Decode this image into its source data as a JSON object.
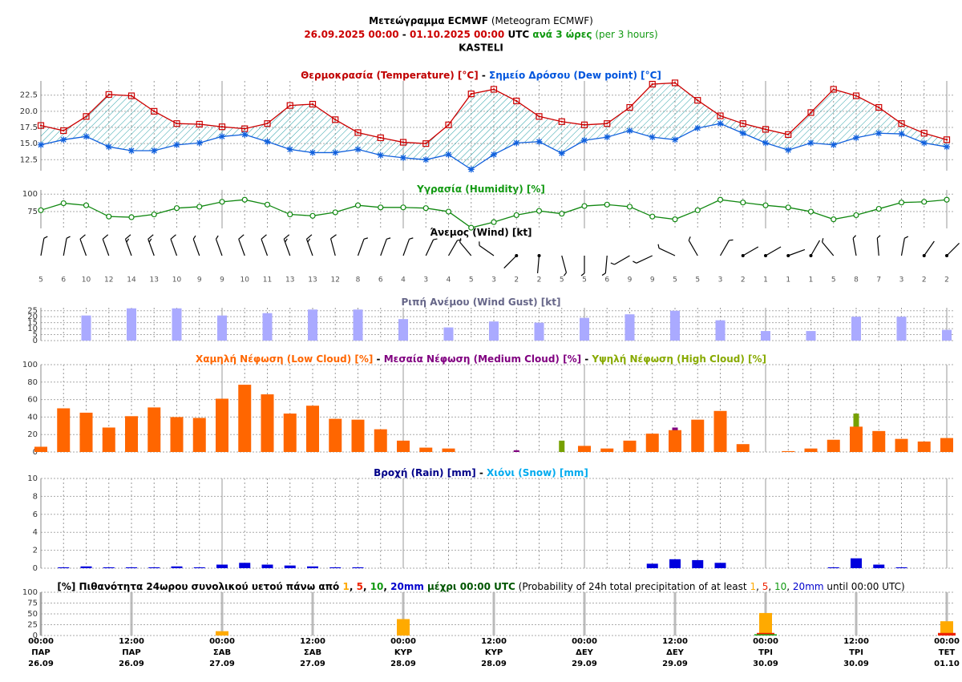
{
  "title": [
    {
      "text": "Μετεώγραμμα ECMWF",
      "bold": true
    },
    {
      "text": " (Meteogram ECMWF)"
    }
  ],
  "subtitle": [
    {
      "text": "26.09.2025 00:00",
      "bold": true,
      "color": "#cc0000"
    },
    {
      "text": " - ",
      "bold": true
    },
    {
      "text": "01.10.2025 00:00",
      "bold": true,
      "color": "#cc0000"
    },
    {
      "text": " UTC",
      "bold": true
    },
    {
      "text": " ανά 3 ώρες",
      "bold": true,
      "color": "#119911"
    },
    {
      "text": " (per 3 hours)",
      "color": "#119911"
    }
  ],
  "location": "KASTELI",
  "time_axis": {
    "categories": [
      {
        "time": "00:00",
        "day": "ΠΑΡ",
        "date": "26.09"
      },
      null,
      null,
      null,
      {
        "time": "12:00",
        "day": "ΠΑΡ",
        "date": "26.09"
      },
      null,
      null,
      null,
      {
        "time": "00:00",
        "day": "ΣΑΒ",
        "date": "27.09"
      },
      null,
      null,
      null,
      {
        "time": "12:00",
        "day": "ΣΑΒ",
        "date": "27.09"
      },
      null,
      null,
      null,
      {
        "time": "00:00",
        "day": "ΚΥΡ",
        "date": "28.09"
      },
      null,
      null,
      null,
      {
        "time": "12:00",
        "day": "ΚΥΡ",
        "date": "28.09"
      },
      null,
      null,
      null,
      {
        "time": "00:00",
        "day": "ΔΕΥ",
        "date": "29.09"
      },
      null,
      null,
      null,
      {
        "time": "12:00",
        "day": "ΔΕΥ",
        "date": "29.09"
      },
      null,
      null,
      null,
      {
        "time": "00:00",
        "day": "ΤΡΙ",
        "date": "30.09"
      },
      null,
      null,
      null,
      {
        "time": "12:00",
        "day": "ΤΡΙ",
        "date": "30.09"
      },
      null,
      null,
      null,
      {
        "time": "00:00",
        "day": "ΤΕΤ",
        "date": "01.10"
      }
    ]
  },
  "chart_data": [
    {
      "type": "line",
      "title": [
        {
          "text": "Θερμοκρασία (Temperature) [°C]",
          "bold": true,
          "color": "#c00000"
        },
        {
          "text": " - ",
          "bold": true
        },
        {
          "text": "Σημείο Δρόσου (Dew point) [°C]",
          "bold": true,
          "color": "#0055dd"
        }
      ],
      "ylim": [
        10.8,
        24.7
      ],
      "yticks": [
        12.5,
        {
          "value": 15,
          "label": "15.0"
        },
        17.5,
        {
          "value": 20,
          "label": "20.0"
        },
        22.5
      ],
      "fill_between": true,
      "series": [
        {
          "name": "Θερμοκρασία (Temperature) [°C]",
          "color": "#cc0000",
          "marker": "square",
          "values": [
            17.8,
            17.0,
            19.2,
            22.6,
            22.4,
            20.0,
            18.1,
            18.0,
            17.6,
            17.3,
            18.1,
            20.9,
            21.1,
            18.7,
            16.7,
            15.9,
            15.2,
            15.0,
            17.9,
            22.7,
            23.4,
            21.6,
            19.2,
            18.4,
            17.9,
            18.1,
            20.6,
            24.2,
            24.4,
            21.7,
            19.3,
            18.1,
            17.2,
            16.4,
            19.8,
            23.4,
            22.4,
            20.6,
            18.1,
            16.6,
            15.6
          ]
        },
        {
          "name": "Σημείο Δρόσου (Dew point) [°C]",
          "color": "#1060dd",
          "marker": "asterisk",
          "values": [
            14.8,
            15.6,
            16.1,
            14.5,
            13.9,
            13.9,
            14.8,
            15.1,
            16.1,
            16.4,
            15.3,
            14.1,
            13.6,
            13.6,
            14.1,
            13.2,
            12.8,
            12.5,
            13.3,
            11.0,
            13.3,
            15.1,
            15.3,
            13.5,
            15.5,
            16.0,
            17.0,
            16.0,
            15.6,
            17.4,
            18.1,
            16.6,
            15.1,
            14.0,
            15.1,
            14.8,
            15.9,
            16.6,
            16.5,
            15.1,
            14.5
          ]
        }
      ]
    },
    {
      "type": "line",
      "title": [
        {
          "text": "Υγρασία (Humidity) [%]",
          "bold": true,
          "color": "#119911"
        }
      ],
      "ylim": [
        51,
        106
      ],
      "yticks": [
        75,
        100
      ],
      "series": [
        {
          "name": "Υγρασία (Humidity) [%]",
          "color": "#118811",
          "marker": "circle",
          "values": [
            77,
            87,
            84,
            68,
            67,
            71,
            80,
            82,
            89,
            92,
            85,
            71,
            69,
            74,
            84,
            81,
            81,
            80,
            75,
            52,
            60,
            70,
            76,
            72,
            83,
            85,
            82,
            68,
            64,
            77,
            92,
            88,
            84,
            81,
            75,
            64,
            70,
            79,
            88,
            89,
            92
          ]
        }
      ]
    },
    {
      "type": "wind",
      "title": [
        {
          "text": "Άνεμος (Wind) [kt]",
          "bold": true,
          "color": "#000000"
        }
      ],
      "speeds": [
        5,
        6,
        10,
        12,
        14,
        13,
        10,
        9,
        9,
        10,
        11,
        13,
        13,
        12,
        8,
        6,
        4,
        3,
        4,
        5,
        3,
        2,
        2,
        5,
        5,
        6,
        9,
        9,
        5,
        5,
        3,
        2,
        1,
        1,
        1,
        5,
        8,
        7,
        3,
        2,
        2
      ],
      "directions": [
        10,
        10,
        340,
        340,
        340,
        340,
        340,
        340,
        340,
        340,
        340,
        340,
        340,
        345,
        20,
        20,
        20,
        25,
        30,
        320,
        305,
        225,
        185,
        165,
        180,
        185,
        240,
        245,
        295,
        330,
        30,
        60,
        60,
        70,
        30,
        320,
        350,
        355,
        10,
        35,
        45
      ]
    },
    {
      "type": "bar",
      "title": [
        {
          "text": "Ριπή Ανέμου (Wind Gust) [kt]",
          "bold": true,
          "color": "#666688"
        }
      ],
      "ylim": [
        0,
        27.5
      ],
      "yticks": [
        0,
        5,
        10,
        15,
        20,
        25
      ],
      "series": [
        {
          "name": "Ριπή Ανέμου (Wind Gust) [kt]",
          "color": "#aaaaff",
          "values": [
            null,
            null,
            21,
            null,
            27,
            null,
            27,
            null,
            21,
            null,
            23,
            null,
            26,
            null,
            26,
            null,
            18,
            null,
            11,
            null,
            16,
            null,
            15,
            null,
            19,
            null,
            22,
            null,
            25,
            null,
            17,
            null,
            8,
            null,
            8,
            null,
            20,
            null,
            20,
            null,
            9
          ]
        }
      ]
    },
    {
      "type": "bar",
      "title": [
        {
          "text": "Χαμηλή Νέφωση (Low Cloud) [%]",
          "bold": true,
          "color": "#ff6600"
        },
        {
          "text": " - ",
          "bold": true
        },
        {
          "text": "Μεσαία Νέφωση (Medium Cloud) [%]",
          "bold": true,
          "color": "#800080"
        },
        {
          "text": " - ",
          "bold": true
        },
        {
          "text": "Υψηλή Νέφωση (High Cloud) [%]",
          "bold": true,
          "color": "#88aa00"
        }
      ],
      "ylim": [
        0,
        100
      ],
      "yticks": [
        0,
        20,
        40,
        60,
        80,
        100
      ],
      "series": [
        {
          "name": "Χαμηλή Νέφωση (Low Cloud) [%]",
          "color": "#ff6600",
          "values": [
            6,
            50,
            45,
            28,
            41,
            51,
            40,
            39,
            61,
            77,
            66,
            44,
            53,
            38,
            37,
            26,
            13,
            5,
            4,
            0,
            0,
            0,
            0,
            0,
            7,
            4,
            13,
            21,
            25,
            37,
            47,
            9,
            0,
            1,
            4,
            14,
            29,
            24,
            15,
            12,
            16
          ]
        },
        {
          "name": "Μεσαία Νέφωση (Medium Cloud) [%]",
          "color": "#800080",
          "values": [
            0,
            0,
            0,
            0,
            0,
            0,
            0,
            0,
            0,
            0,
            0,
            0,
            0,
            0,
            0,
            0,
            0,
            0,
            0,
            0,
            0,
            2,
            0,
            0,
            0,
            0,
            0,
            0,
            28,
            0,
            0,
            0,
            0,
            0,
            0,
            0,
            0,
            0,
            0,
            0,
            0
          ]
        },
        {
          "name": "Υψηλή Νέφωση (High Cloud) [%]",
          "color": "#77a000",
          "values": [
            0,
            0,
            0,
            0,
            0,
            0,
            0,
            0,
            0,
            0,
            0,
            0,
            0,
            0,
            0,
            0,
            0,
            0,
            0,
            0,
            0,
            0,
            0,
            13,
            0,
            0,
            0,
            0,
            0,
            0,
            0,
            0,
            0,
            0,
            0,
            0,
            44,
            0,
            0,
            0,
            0
          ]
        }
      ]
    },
    {
      "type": "bar",
      "title": [
        {
          "text": "Βροχή (Rain) [mm]",
          "bold": true,
          "color": "#000088"
        },
        {
          "text": " - ",
          "bold": true
        },
        {
          "text": "Χιόνι (Snow) [mm]",
          "bold": true,
          "color": "#00aaee"
        }
      ],
      "ylim": [
        0,
        10
      ],
      "yticks": [
        0,
        2,
        4,
        6,
        8,
        10
      ],
      "series": [
        {
          "name": "Βροχή (Rain) [mm]",
          "color": "#0000dd",
          "values": [
            0,
            0.1,
            0.2,
            0.1,
            0.1,
            0.1,
            0.2,
            0.1,
            0.4,
            0.6,
            0.4,
            0.3,
            0.2,
            0.1,
            0.1,
            0,
            0,
            0,
            0,
            0,
            0,
            0,
            0,
            0,
            0,
            0,
            0,
            0.5,
            1.0,
            0.9,
            0.6,
            0,
            0,
            0,
            0,
            0.1,
            1.1,
            0.4,
            0.1,
            0,
            0
          ]
        },
        {
          "name": "Χιόνι (Snow) [mm]",
          "color": "#00aaee",
          "values": [
            0,
            0,
            0,
            0,
            0,
            0,
            0,
            0,
            0,
            0,
            0,
            0,
            0,
            0,
            0,
            0,
            0,
            0,
            0,
            0,
            0,
            0,
            0,
            0,
            0,
            0,
            0,
            0,
            0,
            0,
            0,
            0,
            0,
            0,
            0,
            0,
            0,
            0,
            0,
            0,
            0
          ]
        }
      ]
    },
    {
      "type": "bar",
      "title": [
        {
          "text": "[%] Πιθανότητα 24ωρου συνολικού υετού πάνω από ",
          "bold": true
        },
        {
          "text": "1",
          "bold": true,
          "color": "#ffaa00"
        },
        {
          "text": ", ",
          "bold": true
        },
        {
          "text": "5",
          "bold": true,
          "color": "#ee2200"
        },
        {
          "text": ", ",
          "bold": true
        },
        {
          "text": "10",
          "bold": true,
          "color": "#119911"
        },
        {
          "text": ", ",
          "bold": true
        },
        {
          "text": "20mm",
          "bold": true,
          "color": "#0000cc"
        },
        {
          "text": " μέχρι 00:00 UTC",
          "bold": true,
          "color": "#005500"
        },
        {
          "text": " (Probability of 24h total precipitation of at least "
        },
        {
          "text": "1",
          "color": "#ffaa00"
        },
        {
          "text": ", "
        },
        {
          "text": "5",
          "color": "#ee2200"
        },
        {
          "text": ", "
        },
        {
          "text": "10",
          "color": "#119911"
        },
        {
          "text": ", "
        },
        {
          "text": "20mm",
          "color": "#0000cc"
        },
        {
          "text": " until 00:00 UTC)"
        }
      ],
      "ylim": [
        0,
        100
      ],
      "yticks": [
        0,
        25,
        50,
        75,
        100
      ],
      "series": [
        {
          "name": "1",
          "color": "#ffaa00",
          "values": [
            0,
            null,
            null,
            null,
            null,
            null,
            null,
            null,
            10,
            null,
            null,
            null,
            null,
            null,
            null,
            null,
            38,
            null,
            null,
            null,
            null,
            null,
            null,
            null,
            0,
            null,
            null,
            null,
            null,
            null,
            null,
            null,
            52,
            null,
            null,
            null,
            null,
            null,
            null,
            null,
            33
          ]
        },
        {
          "name": "5",
          "color": "#ee2200",
          "values": [
            0,
            null,
            null,
            null,
            null,
            null,
            null,
            null,
            0,
            null,
            null,
            null,
            null,
            null,
            null,
            null,
            0,
            null,
            null,
            null,
            null,
            null,
            null,
            null,
            0,
            null,
            null,
            null,
            null,
            null,
            null,
            null,
            6,
            null,
            null,
            null,
            null,
            null,
            null,
            null,
            6
          ]
        },
        {
          "name": "10",
          "color": "#22aa22",
          "values": [
            0,
            null,
            null,
            null,
            null,
            null,
            null,
            null,
            0,
            null,
            null,
            null,
            null,
            null,
            null,
            null,
            0,
            null,
            null,
            null,
            null,
            null,
            null,
            null,
            0,
            null,
            null,
            null,
            null,
            null,
            null,
            null,
            3,
            null,
            null,
            null,
            null,
            null,
            null,
            null,
            0
          ]
        },
        {
          "name": "20mm",
          "color": "#0000cc",
          "values": [
            0,
            null,
            null,
            null,
            null,
            null,
            null,
            null,
            0,
            null,
            null,
            null,
            null,
            null,
            null,
            null,
            0,
            null,
            null,
            null,
            null,
            null,
            null,
            null,
            0,
            null,
            null,
            null,
            null,
            null,
            null,
            null,
            0,
            null,
            null,
            null,
            null,
            null,
            null,
            null,
            0
          ]
        }
      ]
    }
  ]
}
